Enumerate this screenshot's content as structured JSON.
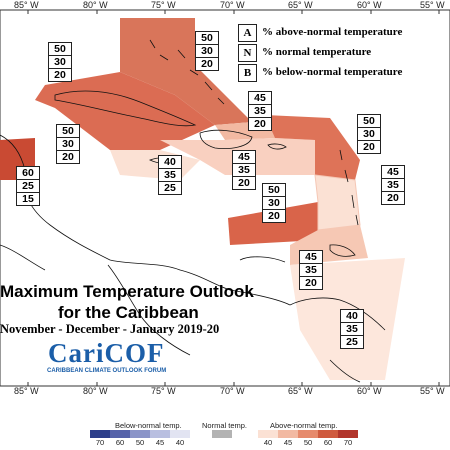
{
  "map": {
    "title_line1": "Maximum Temperature Outlook",
    "title_line2": "for the Caribbean",
    "subtitle": "November - December - January 2019-20",
    "logo_main": "CariCOF",
    "logo_sub": "CARIBBEAN CLIMATE OUTLOOK FORUM"
  },
  "longitudes": [
    "85° W",
    "80° W",
    "75° W",
    "70° W",
    "65° W",
    "60° W",
    "55° W"
  ],
  "legend": {
    "items": [
      {
        "key": "A",
        "label": "% above-normal temperature"
      },
      {
        "key": "N",
        "label": "% normal temperature"
      },
      {
        "key": "B",
        "label": "% below-normal temperature"
      }
    ]
  },
  "regions": [
    {
      "name": "belize-honduras",
      "values": [
        "60",
        "25",
        "15"
      ]
    },
    {
      "name": "cuba",
      "values": [
        "50",
        "30",
        "20"
      ]
    },
    {
      "name": "bahamas",
      "values": [
        "50",
        "30",
        "20"
      ]
    },
    {
      "name": "turks-caicos",
      "values": [
        "45",
        "35",
        "20"
      ]
    },
    {
      "name": "leewards",
      "values": [
        "50",
        "30",
        "20"
      ]
    },
    {
      "name": "jamaica",
      "values": [
        "40",
        "35",
        "25"
      ]
    },
    {
      "name": "hispaniola",
      "values": [
        "45",
        "35",
        "20"
      ]
    },
    {
      "name": "windwards",
      "values": [
        "45",
        "35",
        "20"
      ]
    },
    {
      "name": "puerto-rico-area",
      "values": [
        "50",
        "30",
        "20"
      ]
    },
    {
      "name": "trinidad-area",
      "values": [
        "45",
        "35",
        "20"
      ]
    },
    {
      "name": "guianas",
      "values": [
        "40",
        "35",
        "25"
      ]
    }
  ],
  "colors": {
    "a70": "#b2352b",
    "a60": "#cf5a3e",
    "a50": "#e68a6c",
    "a45": "#f2b9a2",
    "a40": "#fbe1d4",
    "b70": "#2c3e8a",
    "b60": "#5663aa",
    "b50": "#8a94c8",
    "b45": "#b9bfe0",
    "b40": "#e2e4f2",
    "normal": "#b3b3b3"
  },
  "scale": {
    "below_label": "Below-normal temp.",
    "normal_label": "Normal temp.",
    "above_label": "Above-normal temp.",
    "below_ticks": [
      "70",
      "60",
      "50",
      "45",
      "40"
    ],
    "above_ticks": [
      "40",
      "45",
      "50",
      "60",
      "70"
    ]
  }
}
